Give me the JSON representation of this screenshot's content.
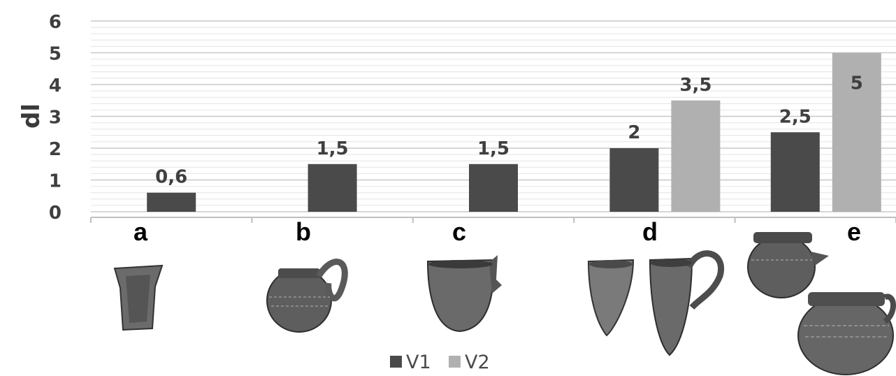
{
  "chart_data": {
    "type": "bar",
    "title": "",
    "xlabel": "",
    "ylabel": "dl",
    "ylim": [
      0,
      6
    ],
    "yticks": [
      0,
      1,
      2,
      3,
      4,
      5,
      6
    ],
    "grid": true,
    "legend_position": "bottom",
    "categories": [
      "a",
      "b",
      "c",
      "d",
      "e"
    ],
    "series": [
      {
        "name": "V1",
        "color": "#4a4a4a",
        "values": [
          0.6,
          1.5,
          1.5,
          2,
          2.5
        ],
        "labels": [
          "0,6",
          "1,5",
          "1,5",
          "2",
          "2,5"
        ]
      },
      {
        "name": "V2",
        "color": "#b0b0b0",
        "values": [
          null,
          null,
          null,
          3.5,
          5
        ],
        "labels": [
          "",
          "",
          "",
          "3,5",
          "5"
        ]
      }
    ]
  },
  "vessel_icons": [
    "beaker-icon",
    "jug-icon",
    "cup-icon",
    "beaker-icon",
    "jug-icon",
    "pot-icon",
    "pot-icon"
  ]
}
